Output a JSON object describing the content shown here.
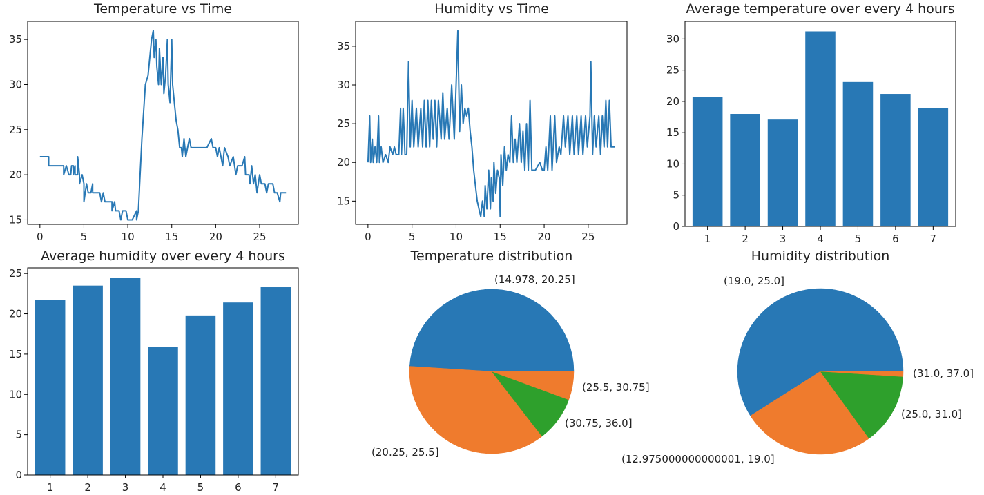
{
  "colors": {
    "blue": "#2878b5",
    "orange": "#ef7b2d",
    "green": "#2ea02c",
    "axis": "#000000"
  },
  "chart_data": [
    {
      "id": "temp-time",
      "type": "line",
      "title": "Temperature vs Time",
      "xlim": [
        -1.4,
        29.4
      ],
      "ylim": [
        14.5,
        37
      ],
      "xticks": [
        0,
        5,
        10,
        15,
        20,
        25
      ],
      "yticks": [
        15,
        20,
        25,
        30,
        35
      ],
      "color": "#2878b5",
      "points": [
        [
          0,
          22
        ],
        [
          1,
          22
        ],
        [
          1,
          21
        ],
        [
          1.5,
          21
        ],
        [
          2.5,
          21
        ],
        [
          2.7,
          21
        ],
        [
          2.7,
          20
        ],
        [
          3,
          21
        ],
        [
          3.3,
          20
        ],
        [
          3.5,
          20
        ],
        [
          3.6,
          21
        ],
        [
          3.8,
          21
        ],
        [
          3.8,
          20
        ],
        [
          4,
          21
        ],
        [
          4,
          20
        ],
        [
          4.3,
          20
        ],
        [
          4.3,
          22
        ],
        [
          4.5,
          20
        ],
        [
          4.5,
          19
        ],
        [
          4.8,
          20
        ],
        [
          5,
          19
        ],
        [
          5,
          17
        ],
        [
          5.3,
          19
        ],
        [
          5.5,
          18
        ],
        [
          5.8,
          18
        ],
        [
          6,
          19
        ],
        [
          6,
          18
        ],
        [
          6.5,
          18
        ],
        [
          6.8,
          18
        ],
        [
          7,
          17
        ],
        [
          7.2,
          18
        ],
        [
          7.4,
          17
        ],
        [
          8,
          17
        ],
        [
          8.2,
          17
        ],
        [
          8.2,
          16
        ],
        [
          8.5,
          17
        ],
        [
          8.6,
          16
        ],
        [
          9,
          16
        ],
        [
          9.2,
          15
        ],
        [
          9.4,
          16
        ],
        [
          9.8,
          16
        ],
        [
          10,
          15
        ],
        [
          10.5,
          15
        ],
        [
          11,
          16
        ],
        [
          11,
          15
        ],
        [
          11.2,
          16
        ],
        [
          11.4,
          20
        ],
        [
          11.6,
          24
        ],
        [
          11.8,
          27
        ],
        [
          12,
          30
        ],
        [
          12.3,
          31
        ],
        [
          12.5,
          33
        ],
        [
          12.7,
          35
        ],
        [
          12.9,
          36
        ],
        [
          13,
          33
        ],
        [
          13.2,
          35
        ],
        [
          13.3,
          32
        ],
        [
          13.5,
          30
        ],
        [
          13.6,
          34
        ],
        [
          13.8,
          30
        ],
        [
          14,
          33
        ],
        [
          14.1,
          29
        ],
        [
          14.3,
          31
        ],
        [
          14.5,
          35
        ],
        [
          14.6,
          30
        ],
        [
          14.8,
          28
        ],
        [
          15,
          35
        ],
        [
          15.1,
          30
        ],
        [
          15.3,
          28
        ],
        [
          15.5,
          26
        ],
        [
          15.7,
          25
        ],
        [
          15.9,
          23
        ],
        [
          16.1,
          23
        ],
        [
          16.2,
          22
        ],
        [
          16.4,
          24
        ],
        [
          16.6,
          22
        ],
        [
          16.8,
          23
        ],
        [
          17,
          24
        ],
        [
          17.2,
          23
        ],
        [
          18,
          23
        ],
        [
          19,
          23
        ],
        [
          19.5,
          24
        ],
        [
          19.7,
          23
        ],
        [
          20,
          23
        ],
        [
          20.2,
          22
        ],
        [
          20.4,
          23
        ],
        [
          20.6,
          22
        ],
        [
          20.8,
          21
        ],
        [
          21,
          23
        ],
        [
          21.4,
          22
        ],
        [
          21.6,
          21
        ],
        [
          22,
          22
        ],
        [
          22.3,
          20
        ],
        [
          22.5,
          21
        ],
        [
          23,
          21
        ],
        [
          23.3,
          22
        ],
        [
          23.4,
          20
        ],
        [
          23.8,
          20
        ],
        [
          23.9,
          19
        ],
        [
          24.1,
          21
        ],
        [
          24.3,
          19
        ],
        [
          24.5,
          20
        ],
        [
          24.7,
          18
        ],
        [
          25,
          20
        ],
        [
          25.2,
          19
        ],
        [
          25.6,
          19
        ],
        [
          25.8,
          18
        ],
        [
          26,
          19
        ],
        [
          26.5,
          19
        ],
        [
          26.7,
          18
        ],
        [
          27,
          18
        ],
        [
          27.3,
          17
        ],
        [
          27.4,
          18
        ],
        [
          28,
          18
        ]
      ]
    },
    {
      "id": "hum-time",
      "type": "line",
      "title": "Humidity vs Time",
      "xlim": [
        -1.4,
        29.4
      ],
      "ylim": [
        12,
        38.2
      ],
      "xticks": [
        0,
        5,
        10,
        15,
        20,
        25
      ],
      "yticks": [
        15,
        20,
        25,
        30,
        35
      ],
      "color": "#2878b5",
      "points": [
        [
          0,
          20
        ],
        [
          0.2,
          26
        ],
        [
          0.3,
          20
        ],
        [
          0.5,
          23
        ],
        [
          0.6,
          20
        ],
        [
          0.8,
          22
        ],
        [
          1,
          20
        ],
        [
          1.2,
          26
        ],
        [
          1.3,
          20
        ],
        [
          1.5,
          22
        ],
        [
          1.7,
          20
        ],
        [
          2,
          21
        ],
        [
          2.3,
          20
        ],
        [
          2.5,
          22
        ],
        [
          2.8,
          21
        ],
        [
          3,
          22
        ],
        [
          3.2,
          21
        ],
        [
          3.5,
          21
        ],
        [
          3.7,
          27
        ],
        [
          3.8,
          21
        ],
        [
          4,
          27
        ],
        [
          4.2,
          21
        ],
        [
          4.4,
          21
        ],
        [
          4.6,
          33
        ],
        [
          4.8,
          22
        ],
        [
          5,
          28
        ],
        [
          5.2,
          22
        ],
        [
          5.5,
          27
        ],
        [
          5.7,
          22
        ],
        [
          6,
          27
        ],
        [
          6.2,
          22
        ],
        [
          6.4,
          28
        ],
        [
          6.6,
          22
        ],
        [
          6.8,
          28
        ],
        [
          7,
          22
        ],
        [
          7.2,
          28
        ],
        [
          7.4,
          23
        ],
        [
          7.6,
          28
        ],
        [
          7.8,
          22
        ],
        [
          8,
          28
        ],
        [
          8.3,
          23
        ],
        [
          8.5,
          29
        ],
        [
          8.7,
          23
        ],
        [
          9,
          27
        ],
        [
          9.2,
          23
        ],
        [
          9.5,
          30
        ],
        [
          9.8,
          23
        ],
        [
          10,
          30
        ],
        [
          10.2,
          37
        ],
        [
          10.4,
          24
        ],
        [
          10.6,
          30
        ],
        [
          10.8,
          25
        ],
        [
          11,
          27
        ],
        [
          11.2,
          26
        ],
        [
          11.4,
          27
        ],
        [
          11.6,
          24
        ],
        [
          11.8,
          22
        ],
        [
          12,
          19
        ],
        [
          12.2,
          17
        ],
        [
          12.4,
          15
        ],
        [
          12.6,
          14
        ],
        [
          12.8,
          13
        ],
        [
          13,
          15
        ],
        [
          13.2,
          13
        ],
        [
          13.3,
          17
        ],
        [
          13.5,
          14
        ],
        [
          13.7,
          19
        ],
        [
          13.9,
          14
        ],
        [
          14,
          18
        ],
        [
          14.2,
          15
        ],
        [
          14.3,
          20
        ],
        [
          14.5,
          16
        ],
        [
          14.7,
          19
        ],
        [
          14.9,
          18
        ],
        [
          15,
          13
        ],
        [
          15.1,
          21
        ],
        [
          15.3,
          17
        ],
        [
          15.5,
          22
        ],
        [
          15.7,
          19
        ],
        [
          15.9,
          21
        ],
        [
          16.1,
          20
        ],
        [
          16.3,
          26
        ],
        [
          16.5,
          20
        ],
        [
          16.7,
          23
        ],
        [
          16.9,
          20
        ],
        [
          17.2,
          25
        ],
        [
          17.4,
          20
        ],
        [
          17.6,
          24
        ],
        [
          17.8,
          19
        ],
        [
          18,
          25
        ],
        [
          18.2,
          19
        ],
        [
          18.4,
          28
        ],
        [
          18.6,
          19
        ],
        [
          19,
          19
        ],
        [
          19.5,
          20
        ],
        [
          19.8,
          19
        ],
        [
          20,
          19
        ],
        [
          20.2,
          22
        ],
        [
          20.4,
          19
        ],
        [
          20.7,
          26
        ],
        [
          20.9,
          19
        ],
        [
          21.2,
          26
        ],
        [
          21.4,
          20
        ],
        [
          21.7,
          22
        ],
        [
          21.9,
          21
        ],
        [
          22.2,
          26
        ],
        [
          22.4,
          22
        ],
        [
          22.7,
          26
        ],
        [
          22.9,
          21
        ],
        [
          23.2,
          26
        ],
        [
          23.4,
          21
        ],
        [
          23.7,
          26
        ],
        [
          23.9,
          21
        ],
        [
          24.2,
          26
        ],
        [
          24.4,
          21
        ],
        [
          24.7,
          26
        ],
        [
          24.9,
          22
        ],
        [
          25.2,
          26
        ],
        [
          25.3,
          33
        ],
        [
          25.5,
          21
        ],
        [
          25.7,
          26
        ],
        [
          25.9,
          22
        ],
        [
          26.2,
          26
        ],
        [
          26.4,
          21
        ],
        [
          26.6,
          26
        ],
        [
          26.8,
          22
        ],
        [
          27,
          28
        ],
        [
          27.2,
          22
        ],
        [
          27.4,
          28
        ],
        [
          27.6,
          22
        ],
        [
          28,
          22
        ]
      ]
    },
    {
      "id": "avg-temp",
      "type": "bar",
      "title": "Average temperature over every 4 hours",
      "categories": [
        "1",
        "2",
        "3",
        "4",
        "5",
        "6",
        "7"
      ],
      "values": [
        20.7,
        18.0,
        17.1,
        31.2,
        23.1,
        21.2,
        18.9
      ],
      "ylim": [
        0,
        32.8
      ],
      "yticks": [
        0,
        5,
        10,
        15,
        20,
        25,
        30
      ],
      "color": "#2878b5"
    },
    {
      "id": "avg-hum",
      "type": "bar",
      "title": "Average humidity over every 4 hours",
      "categories": [
        "1",
        "2",
        "3",
        "4",
        "5",
        "6",
        "7"
      ],
      "values": [
        21.7,
        23.5,
        24.5,
        15.9,
        19.8,
        21.4,
        23.3
      ],
      "ylim": [
        0,
        25.7
      ],
      "yticks": [
        0,
        5,
        10,
        15,
        20,
        25
      ],
      "color": "#2878b5"
    },
    {
      "id": "temp-dist",
      "type": "pie",
      "title": "Temperature distribution",
      "slices": [
        {
          "label": "(14.978, 20.25]",
          "value": 49.0,
          "color": "#2878b5"
        },
        {
          "label": "(20.25, 25.5]",
          "value": 36.5,
          "color": "#ef7b2d"
        },
        {
          "label": "(30.75, 36.0]",
          "value": 8.9,
          "color": "#2ea02c"
        },
        {
          "label": "(25.5, 30.75]",
          "value": 5.6,
          "color": "#ef7b2d"
        }
      ]
    },
    {
      "id": "hum-dist",
      "type": "pie",
      "title": "Humidity distribution",
      "slices": [
        {
          "label": "(19.0, 25.0]",
          "value": 59.0,
          "color": "#2878b5"
        },
        {
          "label": "(12.975000000000001, 19.0]",
          "value": 26.0,
          "color": "#ef7b2d"
        },
        {
          "label": "(25.0, 31.0]",
          "value": 14.0,
          "color": "#2ea02c"
        },
        {
          "label": "(31.0, 37.0]",
          "value": 1.0,
          "color": "#ef7b2d"
        }
      ]
    }
  ]
}
